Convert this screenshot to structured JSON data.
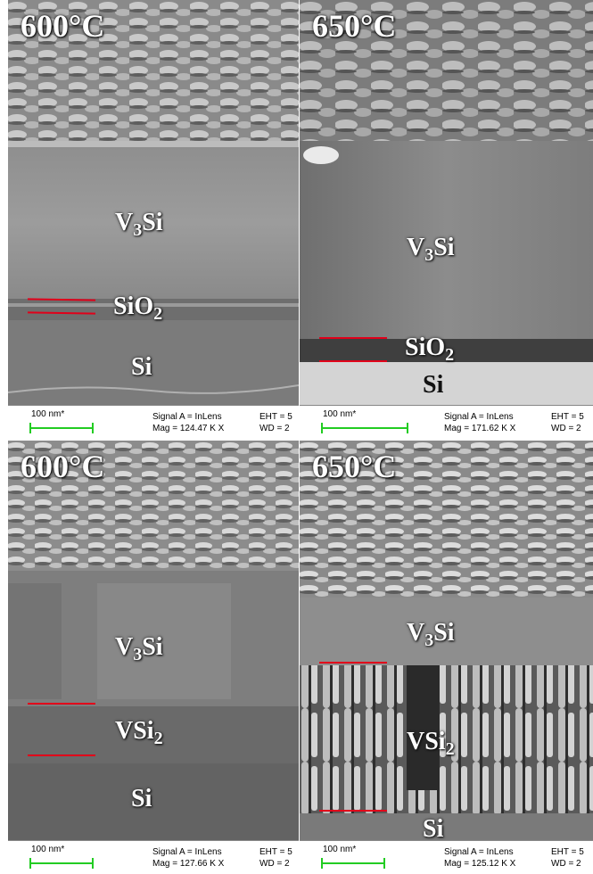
{
  "panels": [
    {
      "temperature": "600°C",
      "layers": [
        {
          "name": "V",
          "sub": "3",
          "suffix": "Si"
        },
        {
          "name": "SiO",
          "sub": "2",
          "suffix": ""
        },
        {
          "name": "Si",
          "sub": "",
          "suffix": ""
        }
      ],
      "info": {
        "scale": "100 nm*",
        "signal": "Signal A = InLens",
        "mag": "Mag = 124.47 K X",
        "eht": "EHT = 5",
        "wd": "WD = 2"
      }
    },
    {
      "temperature": "650°C",
      "layers": [
        {
          "name": "V",
          "sub": "3",
          "suffix": "Si"
        },
        {
          "name": "SiO",
          "sub": "2",
          "suffix": ""
        },
        {
          "name": "Si",
          "sub": "",
          "suffix": ""
        }
      ],
      "info": {
        "scale": "100 nm*",
        "signal": "Signal A = InLens",
        "mag": "Mag = 171.62 K X",
        "eht": "EHT = 5",
        "wd": "WD = 2"
      }
    },
    {
      "temperature": "600°C",
      "layers": [
        {
          "name": "V",
          "sub": "3",
          "suffix": "Si"
        },
        {
          "name": "VSi",
          "sub": "2",
          "suffix": ""
        },
        {
          "name": "Si",
          "sub": "",
          "suffix": ""
        }
      ],
      "info": {
        "scale": "100 nm*",
        "signal": "Signal A = InLens",
        "mag": "Mag = 127.66 K X",
        "eht": "EHT = 5",
        "wd": "WD = 2"
      }
    },
    {
      "temperature": "650°C",
      "layers": [
        {
          "name": "V",
          "sub": "3",
          "suffix": "Si"
        },
        {
          "name": "VSi",
          "sub": "2",
          "suffix": ""
        },
        {
          "name": "Si",
          "sub": "",
          "suffix": ""
        }
      ],
      "info": {
        "scale": "100 nm*",
        "signal": "Signal A = InLens",
        "mag": "Mag = 125.12 K X",
        "eht": "EHT = 5",
        "wd": "WD = 2"
      }
    }
  ]
}
